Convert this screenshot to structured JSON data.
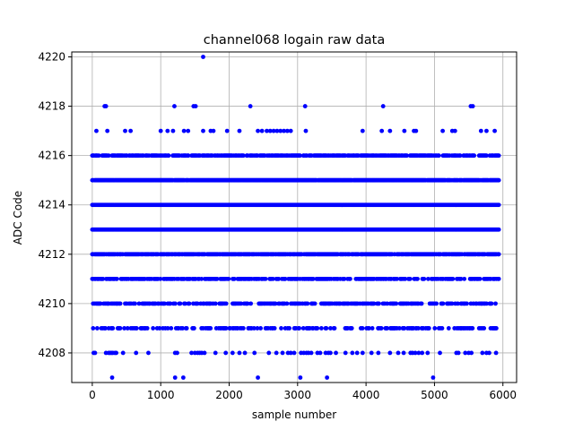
{
  "chart_data": {
    "type": "scatter",
    "title": "channel068 logain raw data",
    "xlabel": "sample number",
    "ylabel": "ADC Code",
    "xlim": [
      -300,
      6200
    ],
    "ylim": [
      4206.8,
      4220.2
    ],
    "x_ticks": [
      0,
      1000,
      2000,
      3000,
      4000,
      5000,
      6000
    ],
    "y_ticks": [
      4208,
      4210,
      4212,
      4214,
      4216,
      4218,
      4220
    ],
    "grid": true,
    "marker_color": "#0000ff",
    "series": [
      {
        "x_range": [
          0,
          5940
        ],
        "levels": [
          {
            "y": 4208,
            "x": [
              20,
              40,
              200,
              240,
              260,
              280,
              300,
              330,
              350,
              450,
              640,
              820,
              1210,
              1240,
              1450,
              1500,
              1540,
              1570,
              1600,
              1640,
              1800,
              1950,
              2050,
              2150,
              2230,
              2370,
              2580,
              2690,
              2780,
              2860,
              2900,
              2950,
              3050,
              3090,
              3130,
              3160,
              3200,
              3290,
              3330,
              3410,
              3450,
              3480,
              3560,
              3700,
              3800,
              3870,
              3950,
              4080,
              4180,
              4350,
              4470,
              4550,
              4650,
              4680,
              4720,
              4770,
              4820,
              4900,
              5080,
              5320,
              5350,
              5450,
              5500,
              5540,
              5700,
              5760,
              5800,
              5900
            ]
          },
          {
            "y": 4207,
            "x": [
              290,
              1210,
              1330,
              2420,
              3040,
              3430,
              4980
            ]
          },
          {
            "y": 4218,
            "x": [
              180,
              200,
              1200,
              1480,
              1510,
              2310,
              3110,
              4250,
              5530,
              5560
            ]
          },
          {
            "y": 4220,
            "x": [
              1620
            ]
          },
          {
            "y": 4217,
            "x": [
              60,
              220,
              480,
              560,
              1000,
              1100,
              1180,
              1340,
              1400,
              1620,
              1730,
              1770,
              1970,
              2150,
              2420,
              2480,
              2550,
              2600,
              2650,
              2700,
              2750,
              2800,
              2850,
              2900,
              3120,
              3950,
              4230,
              4350,
              4560,
              4700,
              4730,
              5120,
              5260,
              5300,
              5680,
              5760,
              5880
            ]
          }
        ],
        "dense_levels": [
          4209,
          4210,
          4211,
          4212,
          4213,
          4214,
          4215,
          4216
        ],
        "dense_level_fill": {
          "4213": 1.0,
          "4214": 1.0,
          "4215": 0.97,
          "4212": 0.85,
          "4216": 0.7,
          "4211": 0.6,
          "4210": 0.5,
          "4209": 0.4
        }
      }
    ]
  }
}
